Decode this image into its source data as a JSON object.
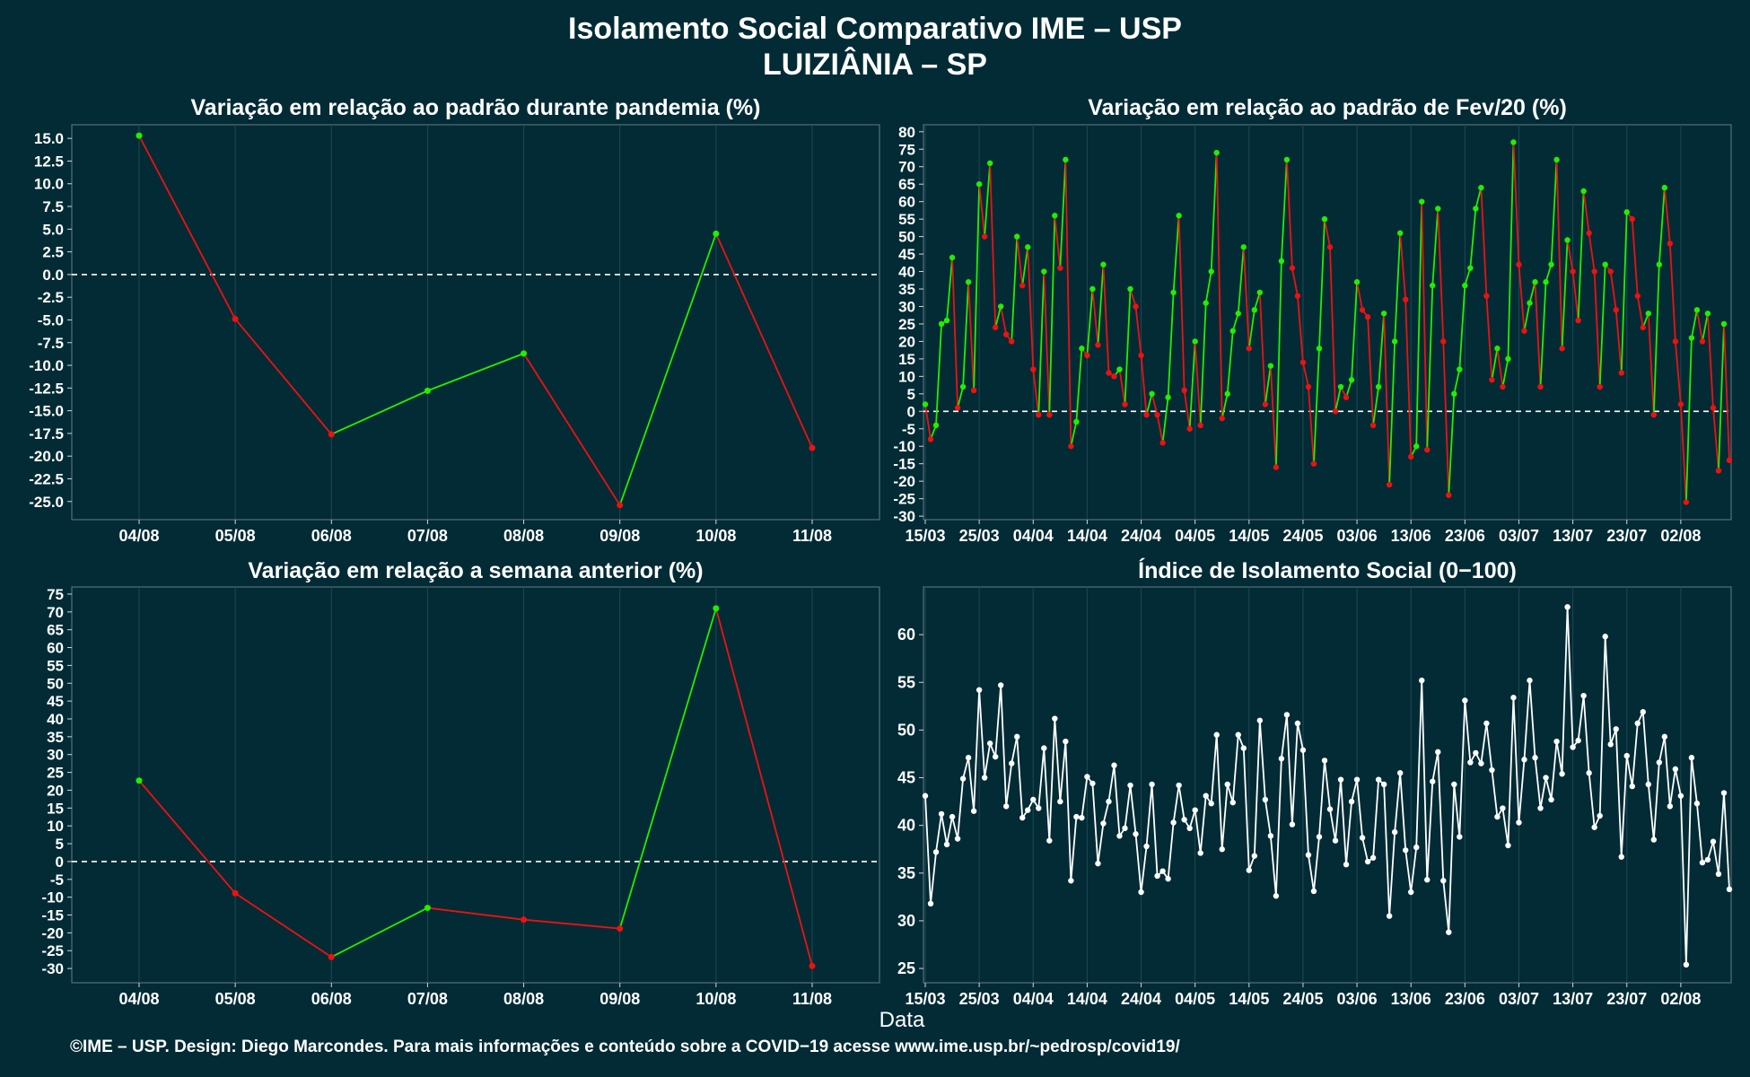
{
  "title_line1": "Isolamento Social Comparativo IME – USP",
  "title_line2": "LUIZIÂNIA – SP",
  "footer": "©IME – USP. Design: Diego Marcondes. Para mais informações e conteúdo sobre a COVID−19 acesse www.ime.usp.br/~pedrosp/covid19/",
  "xlabel": "Data",
  "colors": {
    "background": "#022b35",
    "positive": "#22ee00",
    "negative": "#ee1111",
    "index": "#ffffff",
    "zero_line": "#ffffff",
    "grid": "#1f4853"
  },
  "chart_data": [
    {
      "type": "line",
      "title": "Variação em relação ao padrão durante pandemia (%)",
      "categories": [
        "04/08",
        "05/08",
        "06/08",
        "07/08",
        "08/08",
        "09/08",
        "10/08",
        "11/08"
      ],
      "values": [
        15.3,
        -4.9,
        -17.6,
        -12.8,
        -8.7,
        -25.4,
        4.5,
        -19.1
      ],
      "ylim": [
        -27,
        16.5
      ],
      "yticks": [
        "15.0",
        "12.5",
        "10.0",
        "7.5",
        "5.0",
        "2.5",
        "0.0",
        "-2.5",
        "-5.0",
        "-7.5",
        "-10.0",
        "-12.5",
        "-15.0",
        "-17.5",
        "-20.0",
        "-22.5",
        "-25.0"
      ],
      "zero_line": "dashed",
      "segment_color_rule": "green when rising, red when falling"
    },
    {
      "type": "line",
      "title": "Variação em relação ao padrão de Fev/20 (%)",
      "x_start": "15/03",
      "xticks": [
        "15/03",
        "25/03",
        "04/04",
        "14/04",
        "24/04",
        "04/05",
        "14/05",
        "24/05",
        "03/06",
        "13/06",
        "23/06",
        "03/07",
        "13/07",
        "23/07",
        "02/08"
      ],
      "values": [
        2,
        -8,
        -4,
        25,
        26,
        44,
        1,
        7,
        37,
        6,
        65,
        50,
        71,
        24,
        30,
        22,
        20,
        50,
        36,
        47,
        12,
        -1,
        40,
        -1,
        56,
        41,
        72,
        -10,
        -3,
        18,
        16,
        35,
        19,
        42,
        11,
        10,
        12,
        2,
        35,
        30,
        16,
        -1,
        5,
        -1,
        -9,
        4,
        34,
        56,
        6,
        -5,
        20,
        -4,
        31,
        40,
        74,
        -2,
        5,
        23,
        28,
        47,
        18,
        29,
        34,
        2,
        13,
        -16,
        43,
        72,
        41,
        33,
        14,
        7,
        -15,
        18,
        55,
        47,
        0,
        7,
        4,
        9,
        37,
        29,
        27,
        -4,
        7,
        28,
        -21,
        20,
        51,
        32,
        -13,
        -10,
        60,
        -11,
        36,
        58,
        20,
        -24,
        5,
        12,
        36,
        41,
        58,
        64,
        33,
        9,
        18,
        7,
        15,
        77,
        42,
        23,
        31,
        37,
        7,
        37,
        42,
        72,
        18,
        49,
        40,
        26,
        63,
        51,
        40,
        7,
        42,
        40,
        29,
        11,
        57,
        55,
        33,
        24,
        28,
        -1,
        42,
        64,
        48,
        20,
        2,
        -26,
        21,
        29,
        20,
        28,
        1,
        -17,
        25,
        -14
      ],
      "ylim": [
        -31,
        82
      ],
      "yticks": [
        "80",
        "75",
        "70",
        "65",
        "60",
        "55",
        "50",
        "45",
        "40",
        "35",
        "30",
        "25",
        "20",
        "15",
        "10",
        "5",
        "0",
        "-5",
        "-10",
        "-15",
        "-20",
        "-25",
        "-30"
      ],
      "zero_line": "dashed",
      "segment_color_rule": "green when rising, red when falling"
    },
    {
      "type": "line",
      "title": "Variação em relação a semana anterior (%)",
      "categories": [
        "04/08",
        "05/08",
        "06/08",
        "07/08",
        "08/08",
        "09/08",
        "10/08",
        "11/08"
      ],
      "values": [
        22.7,
        -8.9,
        -26.8,
        -13.0,
        -16.3,
        -18.8,
        71.0,
        -29.3
      ],
      "ylim": [
        -34,
        77
      ],
      "yticks": [
        "75",
        "70",
        "65",
        "60",
        "55",
        "50",
        "45",
        "40",
        "35",
        "30",
        "25",
        "20",
        "15",
        "10",
        "5",
        "0",
        "-5",
        "-10",
        "-15",
        "-20",
        "-25",
        "-30"
      ],
      "zero_line": "dashed",
      "segment_color_rule": "green when rising, red when falling"
    },
    {
      "type": "line",
      "title": "Índice de Isolamento Social (0−100)",
      "x_start": "15/03",
      "xticks": [
        "15/03",
        "25/03",
        "04/04",
        "14/04",
        "24/04",
        "04/05",
        "14/05",
        "24/05",
        "03/06",
        "13/06",
        "23/06",
        "03/07",
        "13/07",
        "23/07",
        "02/08"
      ],
      "values": [
        43.1,
        31.8,
        37.2,
        41.2,
        38.0,
        40.9,
        38.6,
        44.9,
        47.1,
        41.5,
        54.2,
        45.0,
        48.6,
        47.2,
        54.7,
        42.0,
        46.5,
        49.3,
        40.8,
        41.6,
        42.7,
        41.8,
        48.1,
        38.4,
        51.2,
        42.5,
        48.8,
        34.2,
        40.9,
        40.8,
        45.1,
        44.4,
        36.0,
        40.2,
        42.5,
        46.3,
        38.9,
        39.7,
        44.2,
        39.1,
        33.0,
        37.8,
        44.3,
        34.7,
        35.2,
        34.4,
        40.3,
        44.2,
        40.6,
        39.7,
        41.6,
        37.1,
        43.1,
        42.3,
        49.5,
        37.5,
        44.3,
        42.4,
        49.5,
        48.1,
        35.3,
        36.8,
        51.0,
        42.7,
        38.9,
        32.6,
        47.0,
        51.6,
        40.1,
        50.7,
        47.9,
        36.9,
        33.1,
        38.8,
        46.8,
        41.7,
        38.4,
        44.8,
        35.9,
        42.5,
        44.8,
        38.7,
        36.2,
        36.6,
        44.8,
        44.3,
        30.5,
        39.3,
        45.5,
        37.4,
        33.0,
        37.7,
        55.2,
        34.3,
        44.6,
        47.7,
        34.2,
        28.8,
        44.3,
        38.8,
        53.1,
        46.6,
        47.6,
        46.5,
        50.7,
        45.8,
        40.9,
        41.8,
        37.9,
        53.4,
        40.3,
        46.9,
        55.2,
        47.1,
        41.8,
        45.0,
        42.7,
        48.8,
        45.4,
        62.9,
        48.2,
        48.9,
        53.6,
        45.5,
        39.8,
        41.0,
        59.8,
        48.5,
        50.1,
        36.7,
        47.3,
        44.1,
        50.7,
        51.9,
        44.3,
        38.5,
        46.6,
        49.3,
        42.0,
        45.9,
        43.1,
        25.4,
        47.1,
        42.3,
        36.1,
        36.4,
        38.3,
        34.9,
        43.4,
        33.3
      ],
      "ylim": [
        23.5,
        65
      ],
      "yticks": [
        "60",
        "55",
        "50",
        "45",
        "40",
        "35",
        "30",
        "25"
      ]
    }
  ]
}
